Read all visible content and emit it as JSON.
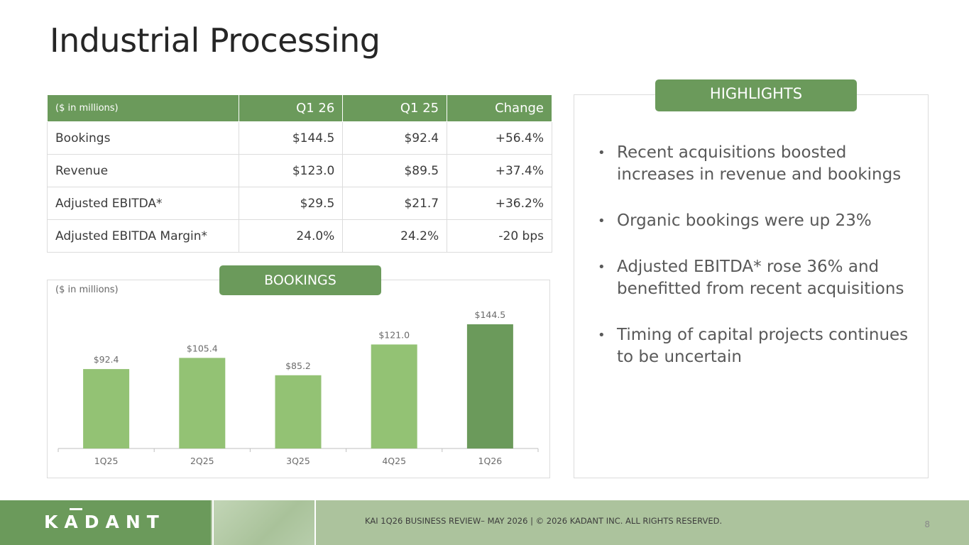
{
  "slide": {
    "title": "Industrial Processing",
    "page_number": "8"
  },
  "table": {
    "headers": [
      "($ in millions)",
      "Q1 26",
      "Q1 25",
      "Change"
    ],
    "rows": [
      {
        "label": "Bookings",
        "q1_26": "$144.5",
        "q1_25": "$92.4",
        "change": "+56.4%"
      },
      {
        "label": "Revenue",
        "q1_26": "$123.0",
        "q1_25": "$89.5",
        "change": "+37.4%"
      },
      {
        "label": "Adjusted EBITDA*",
        "q1_26": "$29.5",
        "q1_25": "$21.7",
        "change": "+36.2%"
      },
      {
        "label": "Adjusted EBITDA Margin*",
        "q1_26": "24.0%",
        "q1_25": "24.2%",
        "change": "-20 bps"
      }
    ]
  },
  "chart": {
    "tab_label": "BOOKINGS",
    "units_label": "($ in millions)"
  },
  "chart_data": {
    "type": "bar",
    "title": "",
    "categories": [
      "1Q25",
      "2Q25",
      "3Q25",
      "4Q25",
      "1Q26"
    ],
    "values": [
      92.4,
      105.4,
      85.2,
      121.0,
      144.5
    ],
    "data_labels": [
      "$92.4",
      "$105.4",
      "$85.2",
      "$121.0",
      "$144.5"
    ],
    "highlight_index": 4,
    "colors": {
      "normal": "#93c274",
      "highlight": "#6b9a5b"
    },
    "ylim": [
      0,
      150
    ],
    "grid": false,
    "legend": "none"
  },
  "highlights": {
    "tab_label": "HIGHLIGHTS",
    "bullets": [
      "Recent acquisitions boosted increases in revenue and bookings",
      "Organic bookings were up 23%",
      "Adjusted EBITDA* rose 36% and benefitted from recent acquisitions",
      "Timing of capital projects continues to be uncertain"
    ]
  },
  "footer": {
    "logo_text": "KADANT",
    "text": "KAI 1Q26 BUSINESS REVIEW– MAY 2026 | © 2026 KADANT INC. ALL RIGHTS RESERVED."
  },
  "colors": {
    "brand_green": "#6b9a5b",
    "light_green": "#93c274",
    "footer_green": "#acc39d"
  }
}
